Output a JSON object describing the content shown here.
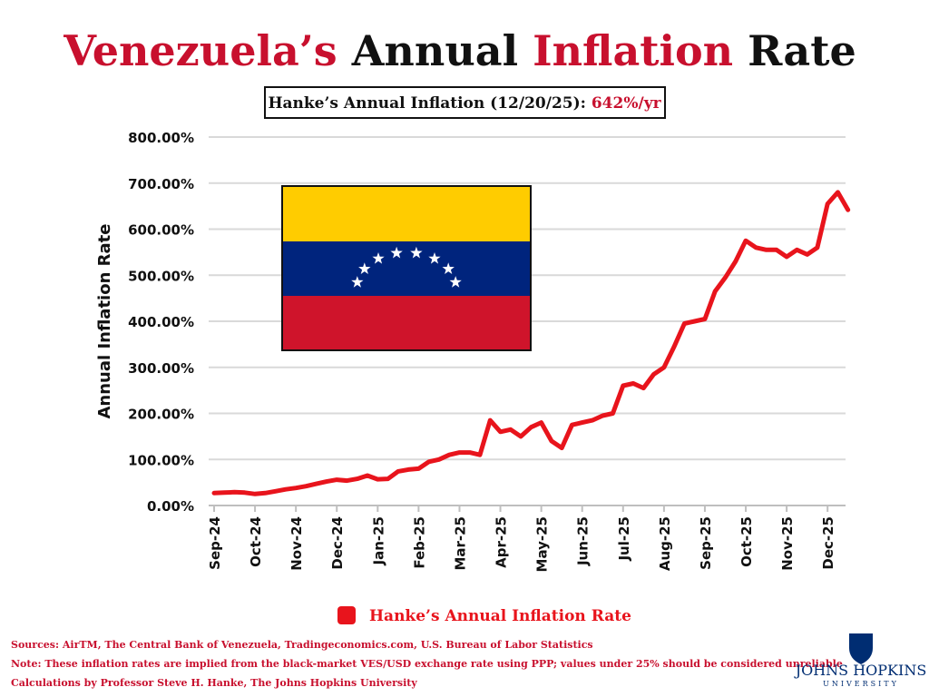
{
  "chart_data": {
    "type": "line",
    "title_parts": [
      "Venezuela’s",
      "Annual",
      "Inflation",
      "Rate"
    ],
    "title_colors": [
      "#c8102e",
      "#111111",
      "#c8102e",
      "#111111"
    ],
    "subtitle": "Hanke’s Annual Inflation (12/20/25):",
    "subtitle_value": "642%/yr",
    "y_label": "Annual Inflation Rate",
    "ylim": [
      0,
      800
    ],
    "yticks": [
      {
        "value": 0,
        "label": "0.00%"
      },
      {
        "value": 100,
        "label": "100.00%"
      },
      {
        "value": 200,
        "label": "200.00%"
      },
      {
        "value": 300,
        "label": "300.00%"
      },
      {
        "value": 400,
        "label": "400.00%"
      },
      {
        "value": 500,
        "label": "500.00%"
      },
      {
        "value": 600,
        "label": "600.00%"
      },
      {
        "value": 700,
        "label": "700.00%"
      },
      {
        "value": 800,
        "label": "800.00%"
      }
    ],
    "grid": true,
    "categories": [
      "Sep-24",
      null,
      null,
      null,
      "Oct-24",
      null,
      null,
      null,
      "Nov-24",
      null,
      null,
      null,
      "Dec-24",
      null,
      null,
      null,
      "Jan-25",
      null,
      null,
      null,
      "Feb-25",
      null,
      null,
      null,
      "Mar-25",
      null,
      null,
      null,
      "Apr-25",
      null,
      null,
      null,
      "May-25",
      null,
      null,
      null,
      "Jun-25",
      null,
      null,
      null,
      "Jul-25",
      null,
      null,
      null,
      "Aug-25",
      null,
      null,
      null,
      "Sep-25",
      null,
      null,
      null,
      "Oct-25",
      null,
      null,
      null,
      "Nov-25",
      null,
      null,
      null,
      "Dec-25",
      null,
      null
    ],
    "series": [
      {
        "name": "Hanke’s Annual Inflation Rate",
        "color": "#e8141c",
        "values": [
          27,
          28,
          29,
          28,
          25,
          27,
          31,
          35,
          38,
          42,
          47,
          52,
          56,
          54,
          58,
          65,
          57,
          58,
          74,
          78,
          80,
          95,
          100,
          110,
          115,
          115,
          110,
          185,
          160,
          165,
          150,
          170,
          180,
          140,
          125,
          175,
          180,
          185,
          195,
          200,
          260,
          265,
          255,
          285,
          300,
          345,
          395,
          400,
          405,
          465,
          495,
          530,
          575,
          560,
          555,
          555,
          540,
          555,
          545,
          560,
          655,
          680,
          642
        ]
      }
    ],
    "notes": [
      "Sources: AirTM, The Central Bank of Venezuela, Tradingeconomics.com, U.S. Bureau of Labor Statistics",
      "Note: These inflation rates are implied from the black-market VES/USD exchange rate using PPP; values under 25% should be considered unreliable",
      "Calculations by Professor Steve H. Hanke, The Johns Hopkins University"
    ],
    "logo": [
      "JOHNS HOPKINS",
      "UNIVERSITY"
    ]
  }
}
